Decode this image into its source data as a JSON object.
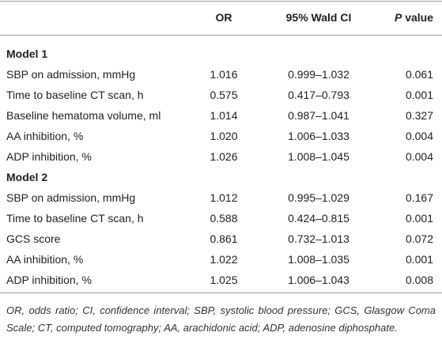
{
  "table": {
    "columns": {
      "or": "OR",
      "ci": "95% Wald CI",
      "p": {
        "symbol": "P",
        "text": "value"
      }
    },
    "sections": [
      {
        "title": "Model 1",
        "rows": [
          [
            "SBP on admission, mmHg",
            "1.016",
            "0.999–1.032",
            "0.061"
          ],
          [
            "Time to baseline CT scan, h",
            "0.575",
            "0.417–0.793",
            "0.001"
          ],
          [
            "Baseline hematoma volume, ml",
            "1.014",
            "0.987–1.041",
            "0.327"
          ],
          [
            "AA inhibition, %",
            "1.020",
            "1.006–1.033",
            "0.004"
          ],
          [
            "ADP inhibition, %",
            "1.026",
            "1.008–1.045",
            "0.004"
          ]
        ]
      },
      {
        "title": "Model 2",
        "rows": [
          [
            "SBP on admission, mmHg",
            "1.012",
            "0.995–1.029",
            "0.167"
          ],
          [
            "Time to baseline CT scan, h",
            "0.588",
            "0.424–0.815",
            "0.001"
          ],
          [
            "GCS score",
            "0.861",
            "0.732–1.013",
            "0.072"
          ],
          [
            "AA inhibition, %",
            "1.022",
            "1.008–1.035",
            "0.001"
          ],
          [
            "ADP inhibition, %",
            "1.025",
            "1.006–1.043",
            "0.008"
          ]
        ]
      }
    ],
    "footnote": "OR, odds ratio; CI, confidence interval; SBP, systolic blood pressure; GCS, Glasgow Coma Scale; CT, computed tomography; AA, arachidonic acid; ADP, adenosine diphosphate."
  }
}
